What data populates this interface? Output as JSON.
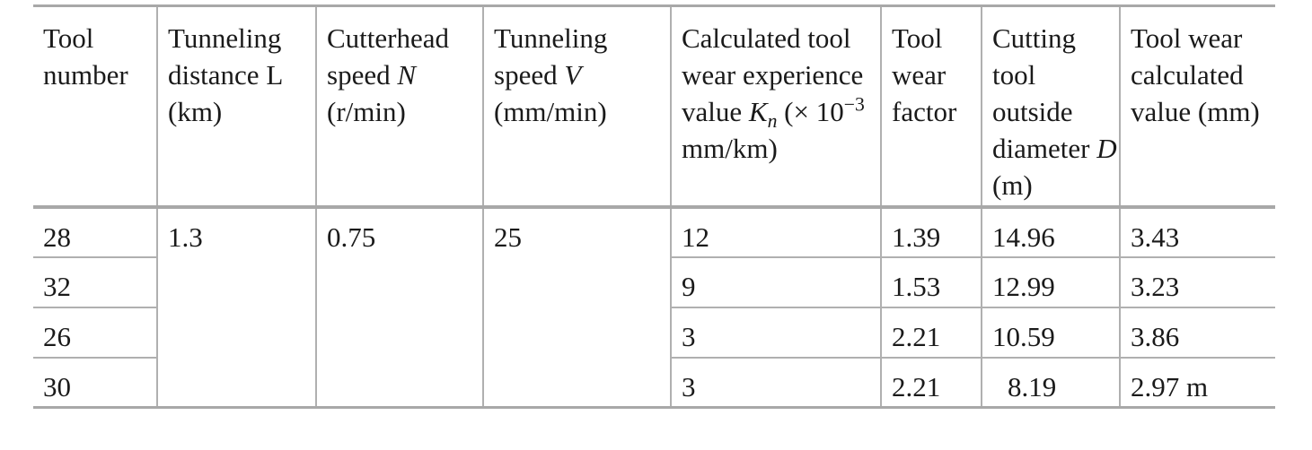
{
  "headers": {
    "tool_number": "Tool number",
    "tunneling_distance": "Tunneling distance L (km)",
    "cutterhead_speed": {
      "prefix": "Cutterhead speed ",
      "symbol": "N",
      "suffix": " (r/min)"
    },
    "tunneling_speed": {
      "prefix": "Tunneling speed ",
      "symbol": "V",
      "suffix": " (mm/min)"
    },
    "wear_experience": {
      "prefix": "Calculated tool wear experience value ",
      "symbol": "K",
      "subscript": "n",
      "mid": " (× 10",
      "superscript": "−3",
      "suffix": " mm/km)"
    },
    "wear_factor": "Tool wear factor",
    "outside_diameter": {
      "prefix": "Cutting tool outside diameter ",
      "symbol": "D",
      "suffix": " (m)"
    },
    "wear_calculated": "Tool wear calculated value (mm)"
  },
  "shared": {
    "tunneling_distance": "1.3",
    "cutterhead_speed": "0.75",
    "tunneling_speed": "25"
  },
  "rows": [
    {
      "tool_number": "28",
      "kn": "12",
      "wear_factor": "1.39",
      "diameter": "14.96",
      "wear_value": "3.43"
    },
    {
      "tool_number": "32",
      "kn": "9",
      "wear_factor": "1.53",
      "diameter": "12.99",
      "wear_value": "3.23"
    },
    {
      "tool_number": "26",
      "kn": "3",
      "wear_factor": "2.21",
      "diameter": "10.59",
      "wear_value": "3.86"
    },
    {
      "tool_number": "30",
      "kn": "3",
      "wear_factor": "2.21",
      "diameter": "8.19",
      "wear_value": "2.97 m"
    }
  ]
}
